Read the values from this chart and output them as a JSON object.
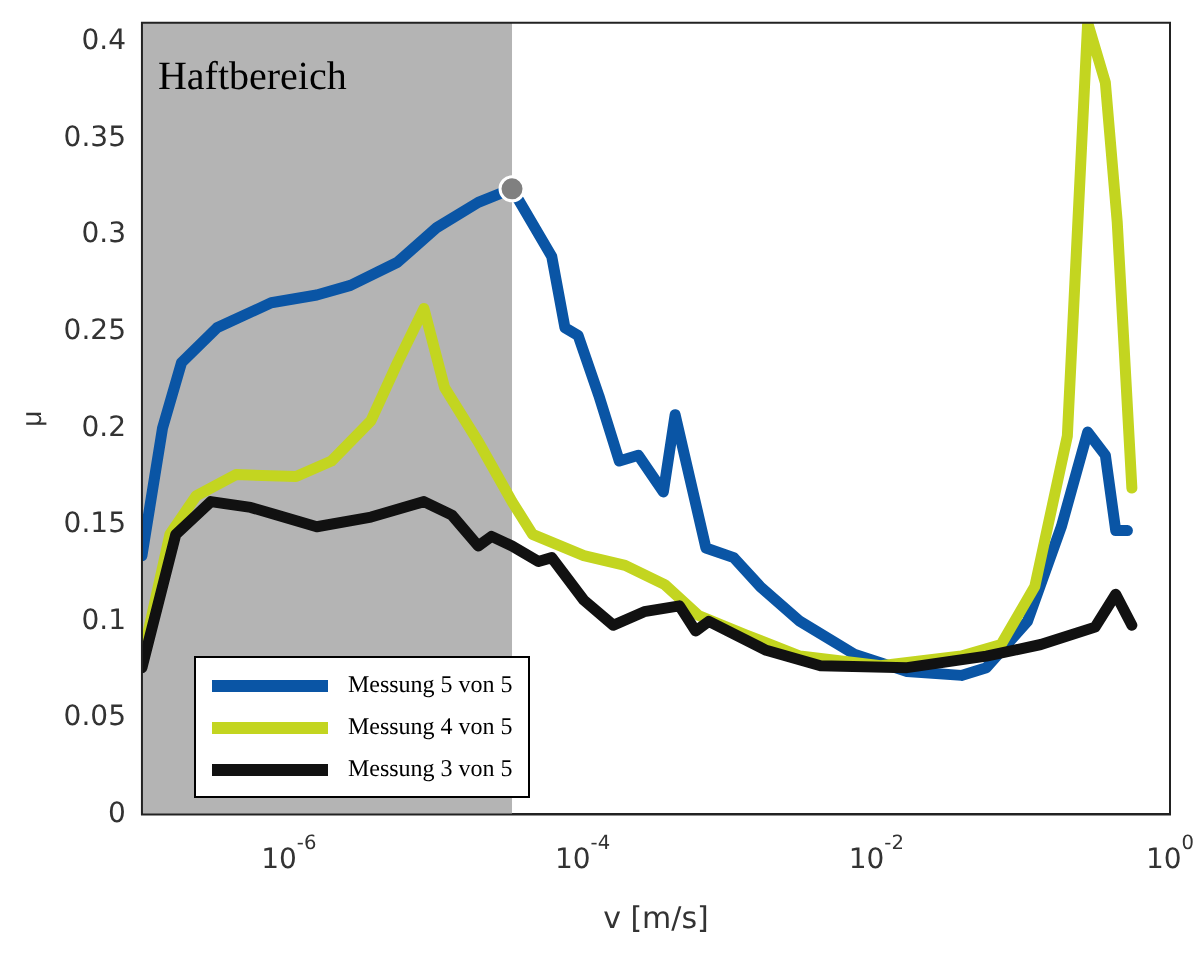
{
  "chart_data": {
    "type": "line",
    "xlabel": "v [m/s]",
    "ylabel": "μ",
    "log": "x",
    "xlim": [
      1e-07,
      1
    ],
    "ylim": [
      0,
      0.41
    ],
    "xticks": [
      {
        "value": 1e-06,
        "label": "10$^{-6}$"
      },
      {
        "value": 0.0001,
        "label": "10$^{-4}$"
      },
      {
        "value": 0.01,
        "label": "10$^{-2}$"
      },
      {
        "value": 1,
        "label": "10$^{0}$"
      }
    ],
    "yticks": [
      0,
      0.05,
      0.1,
      0.15,
      0.2,
      0.25,
      0.3,
      0.35,
      0.4
    ],
    "grid": false,
    "legend": "bottom left",
    "marker": "none",
    "line_style": "solid",
    "bands": [
      {
        "axis": "x",
        "from": 1e-07,
        "to": 3.31e-05,
        "label": "Haftbereich",
        "color": "#b4b4b4"
      }
    ],
    "series": [
      {
        "name": "Messung 5 von 5",
        "color": "#0a55a5",
        "x": [
          1e-07,
          1.38e-07,
          1.86e-07,
          3.24e-07,
          7.59e-07,
          1.55e-06,
          2.63e-06,
          5.5e-06,
          1.02e-05,
          1.95e-05,
          3.31e-05,
          6.17e-05,
          7.59e-05,
          9.33e-05,
          0.000129,
          0.000178,
          0.00024,
          0.000355,
          0.000427,
          0.000692,
          0.00107,
          0.00162,
          0.00302,
          0.00708,
          0.0162,
          0.038,
          0.0562,
          0.107,
          0.182,
          0.275,
          0.363,
          0.427,
          0.513
        ],
        "values": [
          0.134,
          0.2,
          0.234,
          0.252,
          0.265,
          0.269,
          0.274,
          0.286,
          0.304,
          0.317,
          0.324,
          0.289,
          0.252,
          0.248,
          0.217,
          0.183,
          0.186,
          0.167,
          0.207,
          0.138,
          0.133,
          0.118,
          0.1,
          0.083,
          0.074,
          0.072,
          0.076,
          0.1,
          0.149,
          0.198,
          0.186,
          0.147,
          0.147
        ]
      },
      {
        "name": "Messung 4 von 5",
        "color": "#c3d520",
        "x": [
          1e-07,
          1.55e-07,
          2.34e-07,
          4.37e-07,
          1.12e-06,
          1.95e-06,
          3.63e-06,
          5.5e-06,
          8.32e-06,
          1.15e-05,
          1.95e-05,
          3.31e-05,
          4.57e-05,
          0.000102,
          0.000195,
          0.000363,
          0.000617,
          0.00129,
          0.00302,
          0.0107,
          0.038,
          0.0708,
          0.12,
          0.2,
          0.275,
          0.363,
          0.437,
          0.55
        ],
        "values": [
          0.08,
          0.145,
          0.165,
          0.176,
          0.175,
          0.183,
          0.204,
          0.234,
          0.262,
          0.221,
          0.193,
          0.162,
          0.145,
          0.134,
          0.129,
          0.119,
          0.103,
          0.093,
          0.082,
          0.077,
          0.082,
          0.088,
          0.118,
          0.196,
          0.41,
          0.379,
          0.307,
          0.169
        ]
      },
      {
        "name": "Messung 3 von 5",
        "color": "#111111",
        "x": [
          1e-07,
          1.7e-07,
          2.95e-07,
          5.5e-07,
          1.55e-06,
          3.63e-06,
          8.32e-06,
          1.29e-05,
          1.95e-05,
          2.4e-05,
          3.31e-05,
          5.01e-05,
          6.17e-05,
          0.000102,
          0.000162,
          0.000263,
          0.000457,
          0.000589,
          0.000724,
          0.00178,
          0.00417,
          0.0162,
          0.0562,
          0.132,
          0.309,
          0.427,
          0.55
        ],
        "values": [
          0.076,
          0.145,
          0.162,
          0.159,
          0.149,
          0.154,
          0.162,
          0.155,
          0.139,
          0.144,
          0.139,
          0.131,
          0.133,
          0.111,
          0.098,
          0.105,
          0.108,
          0.095,
          0.1,
          0.085,
          0.077,
          0.076,
          0.082,
          0.088,
          0.097,
          0.114,
          0.098
        ]
      },
      {
        "type": "scatter",
        "color": "#808080",
        "marker": "circle",
        "x": [
          3.31e-05
        ],
        "values": [
          0.324
        ]
      }
    ]
  }
}
